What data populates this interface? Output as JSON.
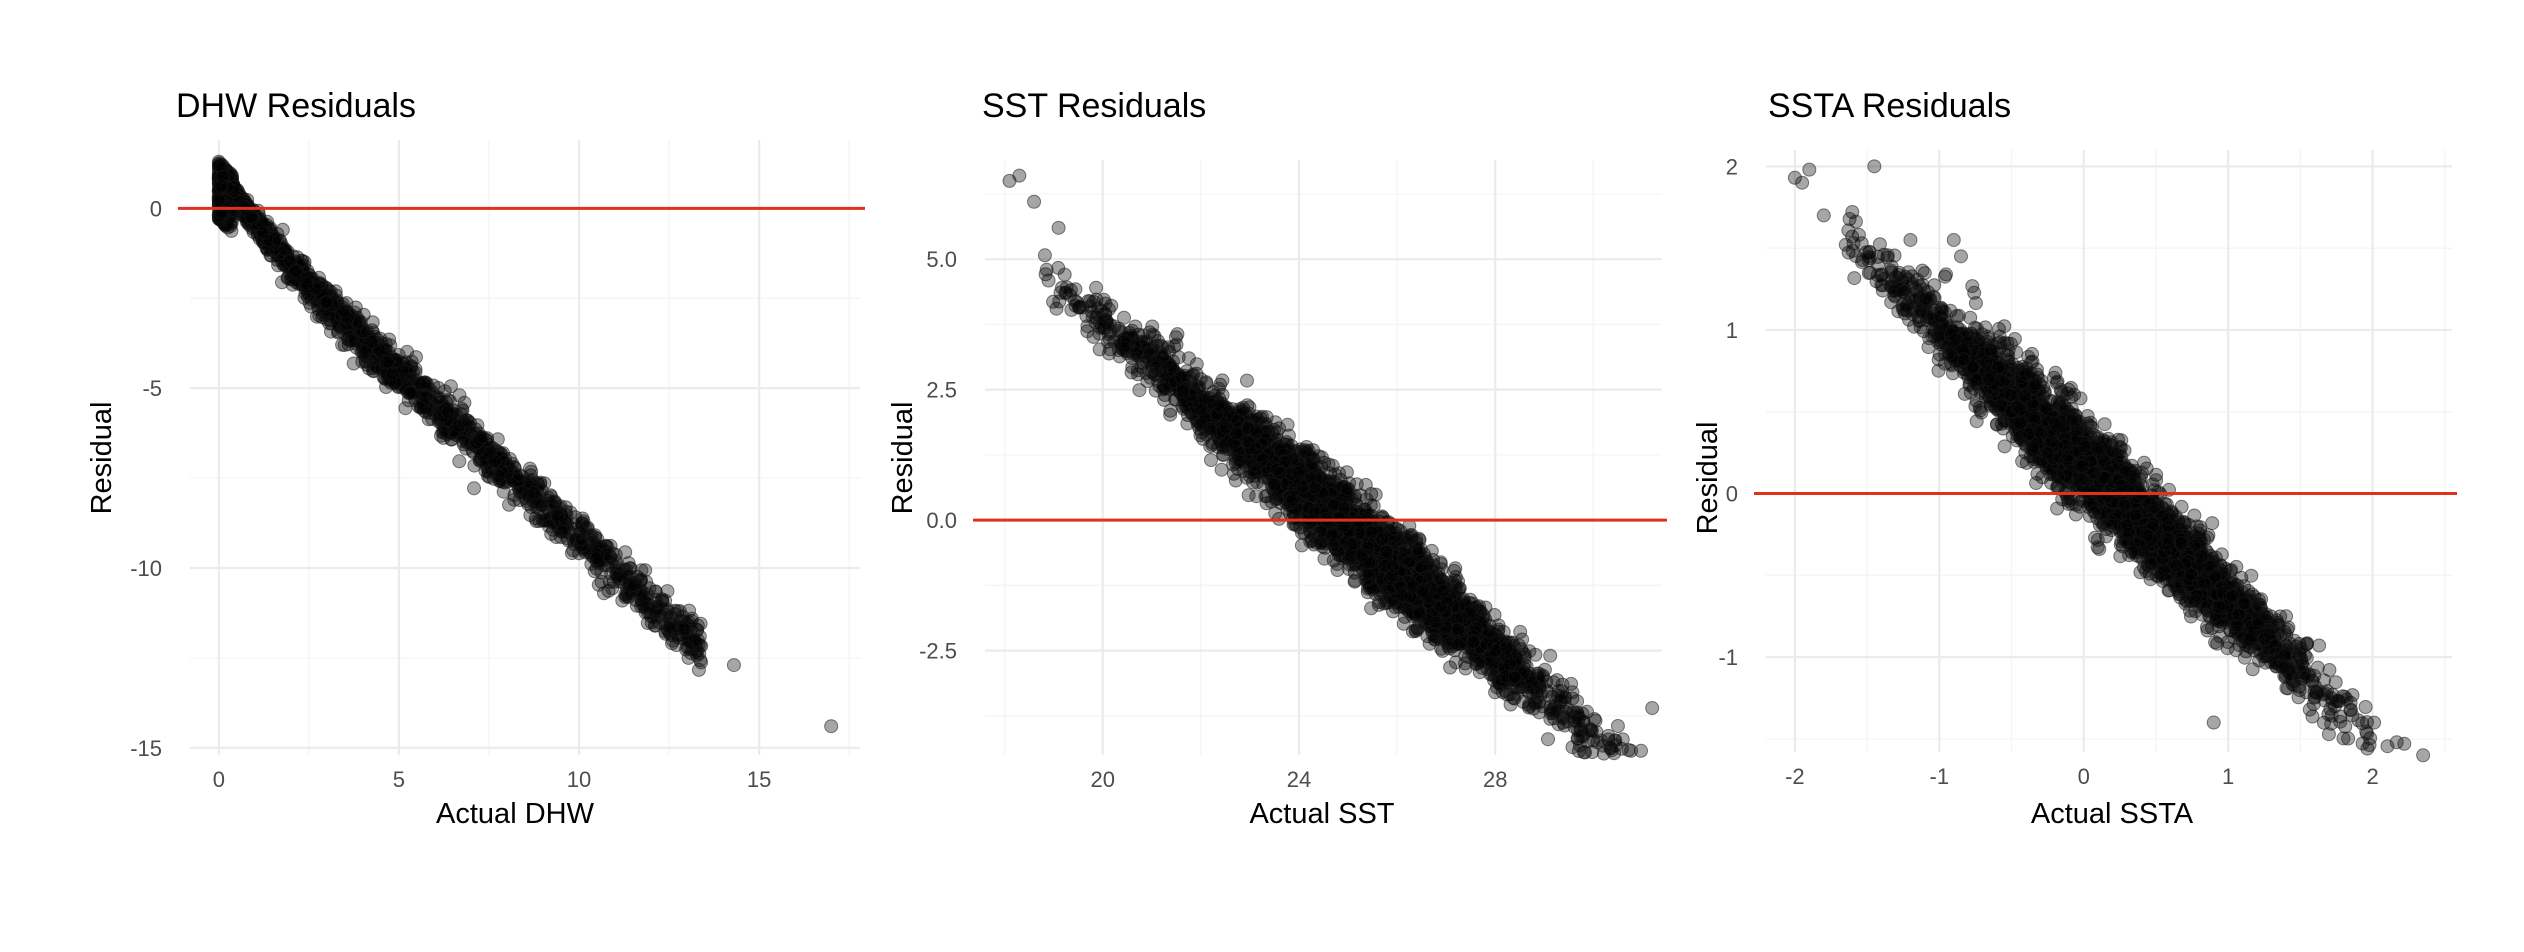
{
  "chart_data": [
    {
      "type": "scatter",
      "title": "DHW Residuals",
      "xlabel": "Actual DHW",
      "ylabel": "Residual",
      "xlim": [
        -0.8,
        17.8
      ],
      "ylim": [
        -15.2,
        1.9
      ],
      "x_ticks": [
        0,
        5,
        10,
        15
      ],
      "x_tick_labels": [
        "0",
        "5",
        "10",
        "15"
      ],
      "y_ticks": [
        0,
        -5,
        -10,
        -15
      ],
      "y_tick_labels": [
        "0",
        "-5",
        "-10",
        "-15"
      ],
      "reference_line": 0,
      "reference_color": "#e0301e",
      "point_color": "#000000",
      "grid": true,
      "trend": {
        "slope": -0.92,
        "intercept": 1.2,
        "x_range": [
          0,
          13.4
        ]
      },
      "outliers": [
        {
          "x": 14.3,
          "y": -12.7
        },
        {
          "x": 17.0,
          "y": -14.4
        },
        {
          "x": 13.3,
          "y": -11.6
        },
        {
          "x": 13.3,
          "y": -12.0
        },
        {
          "x": 12.8,
          "y": -11.2
        }
      ]
    },
    {
      "type": "scatter",
      "title": "SST Residuals",
      "xlabel": "Actual SST",
      "ylabel": "Residual",
      "xlim": [
        17.6,
        31.4
      ],
      "ylim": [
        -4.5,
        6.9
      ],
      "x_ticks": [
        20,
        24,
        28
      ],
      "x_tick_labels": [
        "20",
        "24",
        "28"
      ],
      "y_ticks": [
        5.0,
        2.5,
        0.0,
        -2.5
      ],
      "y_tick_labels": [
        "5.0",
        "2.5",
        "0.0",
        "-2.5"
      ],
      "reference_line": 0,
      "reference_color": "#e0301e",
      "point_color": "#000000",
      "grid": true,
      "trend": {
        "slope": -0.79,
        "intercept": 19.6,
        "x_range": [
          18.8,
          31.0
        ]
      },
      "outliers": [
        {
          "x": 18.1,
          "y": 6.5
        },
        {
          "x": 18.3,
          "y": 6.6
        },
        {
          "x": 18.6,
          "y": 6.1
        },
        {
          "x": 19.1,
          "y": 5.6
        },
        {
          "x": 30.6,
          "y": -4.2
        },
        {
          "x": 31.2,
          "y": -3.6
        }
      ]
    },
    {
      "type": "scatter",
      "title": "SSTA Residuals",
      "xlabel": "Actual SSTA",
      "ylabel": "Residual",
      "xlim": [
        -2.2,
        2.55
      ],
      "ylim": [
        -1.58,
        2.1
      ],
      "x_ticks": [
        -2,
        -1,
        0,
        1,
        2
      ],
      "x_tick_labels": [
        "-2",
        "-1",
        "0",
        "1",
        "2"
      ],
      "y_ticks": [
        2,
        1,
        0,
        -1
      ],
      "y_tick_labels": [
        "2",
        "1",
        "0",
        "-1"
      ],
      "reference_line": 0,
      "reference_color": "#e0301e",
      "point_color": "#000000",
      "grid": true,
      "trend": {
        "slope": -0.84,
        "intercept": 0.18,
        "x_range": [
          -1.65,
          2.35
        ]
      },
      "outliers": [
        {
          "x": -2.0,
          "y": 1.93
        },
        {
          "x": -1.95,
          "y": 1.9
        },
        {
          "x": -1.9,
          "y": 1.98
        },
        {
          "x": -1.45,
          "y": 2.0
        },
        {
          "x": -1.8,
          "y": 1.7
        },
        {
          "x": -1.2,
          "y": 1.55
        },
        {
          "x": -0.9,
          "y": 1.55
        },
        {
          "x": -0.85,
          "y": 1.45
        },
        {
          "x": 0.9,
          "y": -1.4
        },
        {
          "x": 2.35,
          "y": -1.6
        }
      ]
    }
  ]
}
